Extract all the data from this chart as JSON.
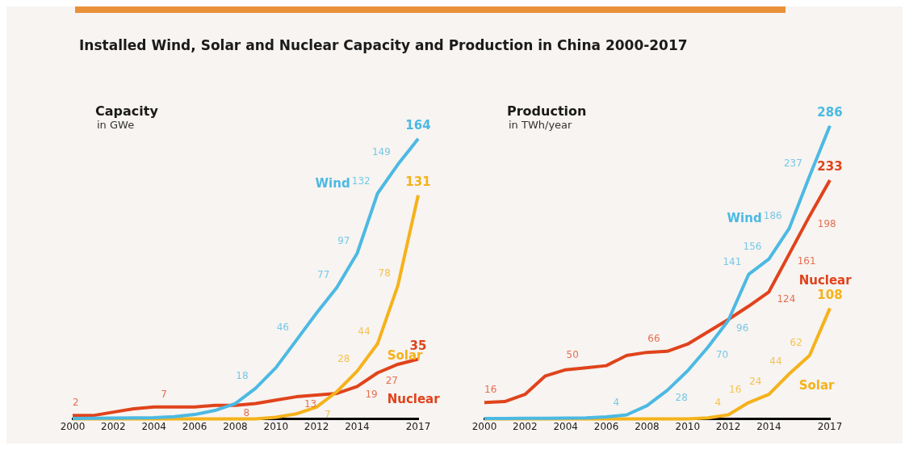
{
  "chart_data": [
    {
      "type": "line",
      "title": "Installed Wind, Solar and Nuclear Capacity and Production in China 2000-2017",
      "subtitle": "Capacity",
      "ylabel": "in GWe",
      "x": [
        2000,
        2001,
        2002,
        2003,
        2004,
        2005,
        2006,
        2007,
        2008,
        2009,
        2010,
        2011,
        2012,
        2013,
        2014,
        2015,
        2016,
        2017
      ],
      "xlim": [
        2000,
        2017
      ],
      "xticks": [
        2000,
        2002,
        2004,
        2006,
        2008,
        2010,
        2012,
        2014,
        2017
      ],
      "tick_labels": "x",
      "grid": false,
      "legend": false,
      "line_style": "solid",
      "series": [
        {
          "name": "Wind",
          "color": "#4cb9e3",
          "values": [
            0.3,
            0.4,
            0.5,
            0.6,
            0.8,
            1.3,
            2.6,
            5,
            9,
            18,
            30,
            46,
            62,
            77,
            97,
            132,
            149,
            164
          ],
          "value_labels": [
            null,
            null,
            null,
            null,
            null,
            null,
            null,
            null,
            null,
            "18",
            null,
            "46",
            null,
            "77",
            "97",
            "132",
            "149",
            "164"
          ]
        },
        {
          "name": "Solar",
          "color": "#f5b21b",
          "values": [
            0,
            0,
            0,
            0,
            0,
            0,
            0,
            0,
            0,
            0,
            1,
            3,
            7,
            16,
            28,
            44,
            78,
            131
          ],
          "value_labels": [
            null,
            null,
            null,
            null,
            null,
            null,
            null,
            null,
            null,
            null,
            null,
            null,
            "7",
            null,
            "28",
            "44",
            "78",
            "131"
          ]
        },
        {
          "name": "Nuclear",
          "color": "#e0431c",
          "values": [
            2,
            2,
            4,
            6,
            7,
            7,
            7,
            8,
            8,
            9,
            11,
            13,
            14,
            15,
            19,
            27,
            32,
            35
          ],
          "value_labels": [
            "2",
            null,
            null,
            null,
            null,
            "7",
            null,
            null,
            "8",
            null,
            null,
            "13",
            null,
            null,
            "19",
            "27",
            null,
            "35"
          ]
        }
      ]
    },
    {
      "type": "line",
      "subtitle": "Production",
      "ylabel": "in TWh/year",
      "x": [
        2000,
        2001,
        2002,
        2003,
        2004,
        2005,
        2006,
        2007,
        2008,
        2009,
        2010,
        2011,
        2012,
        2013,
        2014,
        2015,
        2016,
        2017
      ],
      "xlim": [
        2000,
        2017
      ],
      "xticks": [
        2000,
        2002,
        2004,
        2006,
        2008,
        2010,
        2012,
        2014,
        2017
      ],
      "tick_labels": "x",
      "grid": false,
      "legend": false,
      "line_style": "solid",
      "series": [
        {
          "name": "Wind",
          "color": "#4cb9e3",
          "values": [
            0.5,
            0.5,
            0.6,
            0.7,
            0.8,
            1,
            2,
            4,
            13,
            28,
            47,
            70,
            96,
            141,
            156,
            186,
            237,
            286
          ],
          "value_labels": [
            null,
            null,
            null,
            null,
            null,
            null,
            null,
            "4",
            null,
            "28",
            null,
            "70",
            "96",
            "141",
            "156",
            "186",
            "237",
            "286"
          ]
        },
        {
          "name": "Nuclear",
          "color": "#e0431c",
          "values": [
            16,
            17,
            24,
            42,
            48,
            50,
            52,
            62,
            65,
            66,
            73,
            85,
            97,
            110,
            124,
            161,
            198,
            233
          ],
          "value_labels": [
            "16",
            null,
            null,
            null,
            null,
            "50",
            null,
            null,
            null,
            "66",
            null,
            null,
            null,
            null,
            "124",
            "161",
            "198",
            "233"
          ]
        },
        {
          "name": "Solar",
          "color": "#f5b21b",
          "values": [
            0,
            0,
            0,
            0,
            0,
            0,
            0,
            0,
            0,
            0,
            0,
            1,
            4,
            16,
            24,
            44,
            62,
            108
          ],
          "value_labels": [
            null,
            null,
            null,
            null,
            null,
            null,
            null,
            null,
            null,
            null,
            null,
            null,
            "4",
            "16",
            "24",
            "44",
            "62",
            "108"
          ]
        }
      ]
    }
  ]
}
